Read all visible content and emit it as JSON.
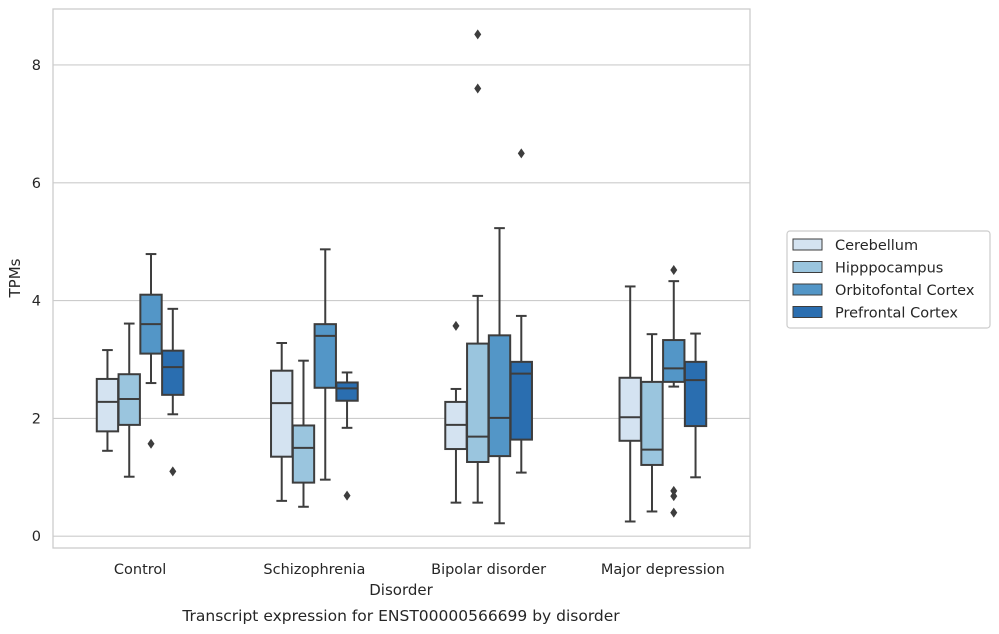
{
  "chart_data": {
    "type": "box",
    "title": "Transcript expression for ENST00000566699 by disorder",
    "xlabel": "Disorder",
    "ylabel": "TPMs",
    "ylim": [
      -0.2,
      8.95
    ],
    "yticks": [
      0,
      2,
      4,
      6,
      8
    ],
    "grid": true,
    "legend_position": "right",
    "categories": [
      "Control",
      "Schizophrenia",
      "Bipolar disorder",
      "Major depression"
    ],
    "series": [
      {
        "name": "Cerebellum",
        "color": "#d4e3f1",
        "boxes": [
          {
            "q1": 1.78,
            "median": 2.28,
            "q3": 2.67,
            "whisker_low": 1.45,
            "whisker_high": 3.16,
            "outliers": []
          },
          {
            "q1": 1.35,
            "median": 2.26,
            "q3": 2.81,
            "whisker_low": 0.6,
            "whisker_high": 3.28,
            "outliers": []
          },
          {
            "q1": 1.48,
            "median": 1.89,
            "q3": 2.28,
            "whisker_low": 0.57,
            "whisker_high": 2.5,
            "outliers": [
              3.57
            ]
          },
          {
            "q1": 1.62,
            "median": 2.02,
            "q3": 2.69,
            "whisker_low": 0.25,
            "whisker_high": 4.24,
            "outliers": []
          }
        ]
      },
      {
        "name": "Hipppocampus",
        "color": "#9ac5de",
        "boxes": [
          {
            "q1": 1.89,
            "median": 2.33,
            "q3": 2.75,
            "whisker_low": 1.01,
            "whisker_high": 3.61,
            "outliers": []
          },
          {
            "q1": 0.91,
            "median": 1.5,
            "q3": 1.88,
            "whisker_low": 0.5,
            "whisker_high": 2.98,
            "outliers": []
          },
          {
            "q1": 1.26,
            "median": 1.69,
            "q3": 3.27,
            "whisker_low": 0.57,
            "whisker_high": 4.08,
            "outliers": [
              7.6,
              8.52
            ]
          },
          {
            "q1": 1.21,
            "median": 1.47,
            "q3": 2.62,
            "whisker_low": 0.42,
            "whisker_high": 3.43,
            "outliers": []
          }
        ]
      },
      {
        "name": "Orbitofontal Cortex",
        "color": "#5396c7",
        "boxes": [
          {
            "q1": 3.1,
            "median": 3.6,
            "q3": 4.1,
            "whisker_low": 2.6,
            "whisker_high": 4.79,
            "outliers": [
              1.57
            ]
          },
          {
            "q1": 2.52,
            "median": 3.4,
            "q3": 3.6,
            "whisker_low": 0.96,
            "whisker_high": 4.87,
            "outliers": []
          },
          {
            "q1": 1.36,
            "median": 2.01,
            "q3": 3.41,
            "whisker_low": 0.22,
            "whisker_high": 5.23,
            "outliers": []
          },
          {
            "q1": 2.62,
            "median": 2.85,
            "q3": 3.33,
            "whisker_low": 2.54,
            "whisker_high": 4.33,
            "outliers": [
              4.52,
              0.77,
              0.68,
              0.4
            ]
          }
        ]
      },
      {
        "name": "Prefrontal Cortex",
        "color": "#2a6eb0",
        "boxes": [
          {
            "q1": 2.4,
            "median": 2.87,
            "q3": 3.15,
            "whisker_low": 2.07,
            "whisker_high": 3.86,
            "outliers": [
              1.1
            ]
          },
          {
            "q1": 2.3,
            "median": 2.51,
            "q3": 2.61,
            "whisker_low": 1.84,
            "whisker_high": 2.78,
            "outliers": [
              0.69
            ]
          },
          {
            "q1": 1.64,
            "median": 2.76,
            "q3": 2.96,
            "whisker_low": 1.08,
            "whisker_high": 3.74,
            "outliers": [
              6.5
            ]
          },
          {
            "q1": 1.87,
            "median": 2.65,
            "q3": 2.96,
            "whisker_low": 1.0,
            "whisker_high": 3.44,
            "outliers": []
          }
        ]
      }
    ]
  }
}
